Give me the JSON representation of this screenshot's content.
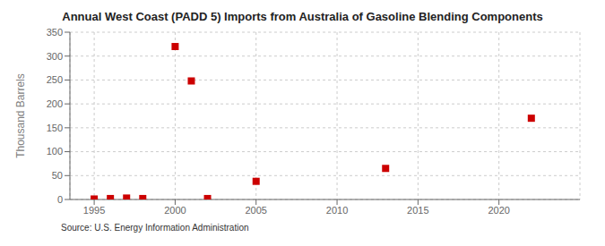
{
  "chart_data": {
    "type": "scatter",
    "title": "Annual West Coast (PADD 5) Imports from Australia of Gasoline Blending Components",
    "ylabel": "Thousand Barrels",
    "annotations": [
      "Source: U.S. Energy Information Administration"
    ],
    "x": [
      1995,
      1996,
      1997,
      1998,
      2000,
      2001,
      2002,
      2005,
      2013,
      2022
    ],
    "values": [
      1,
      2,
      3,
      2,
      320,
      248,
      2,
      38,
      65,
      170
    ],
    "color": "#cc0000",
    "marker": "square",
    "xlim": [
      1993.5,
      2025
    ],
    "ylim": [
      0,
      350
    ],
    "xticks": [
      1995,
      2000,
      2005,
      2010,
      2015,
      2020
    ],
    "yticks": [
      0,
      50,
      100,
      150,
      200,
      250,
      300,
      350
    ],
    "grid": true
  }
}
